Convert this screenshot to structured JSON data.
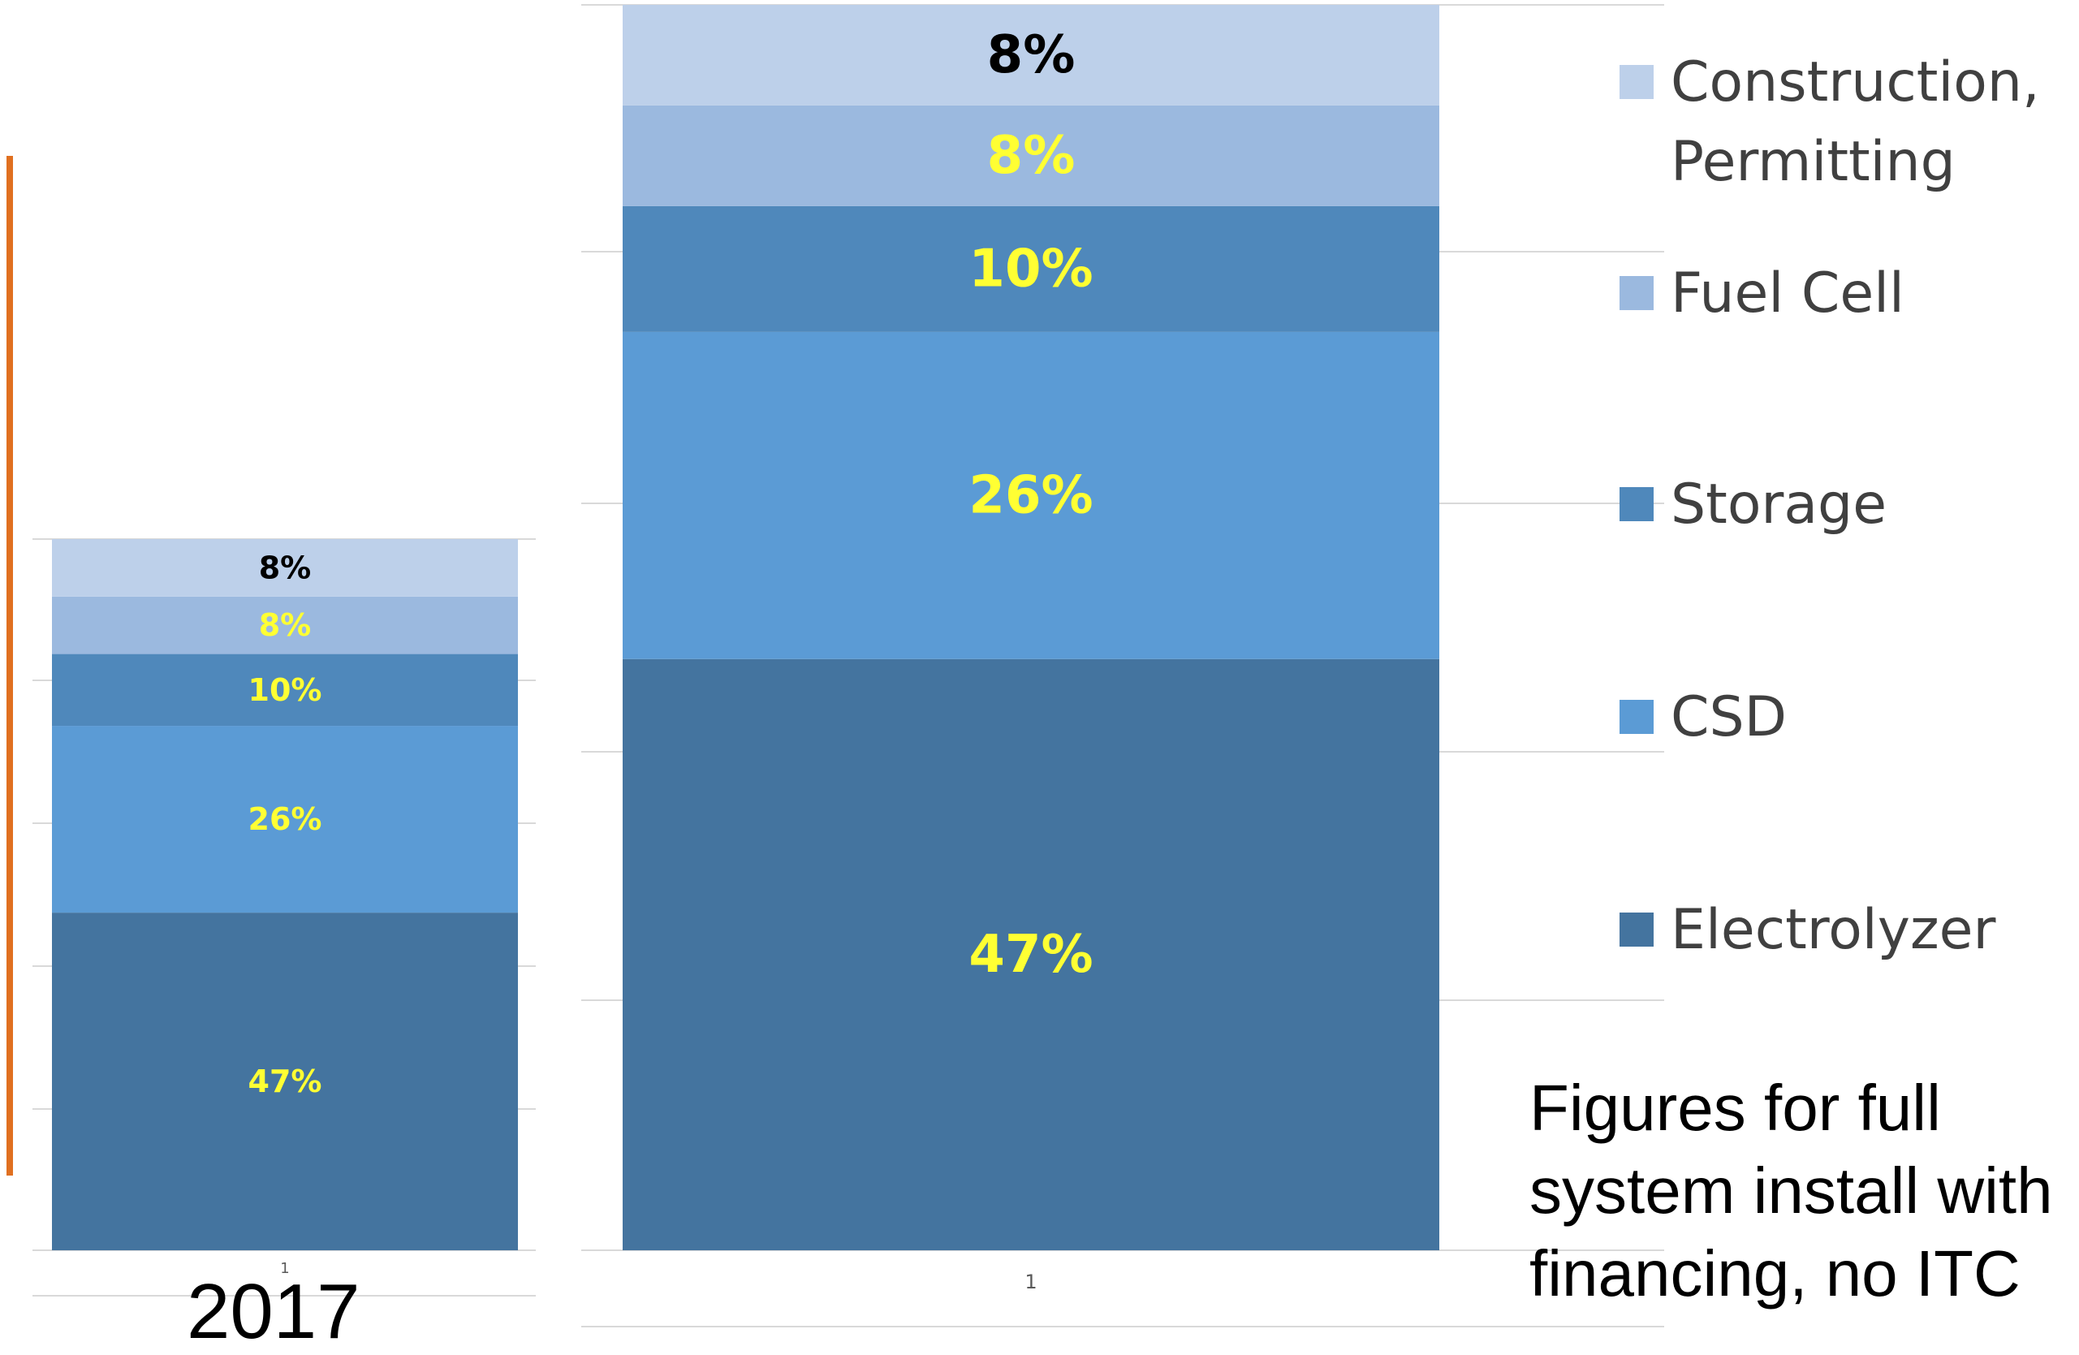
{
  "chart_data": [
    {
      "type": "bar",
      "stacked": true,
      "categories": [
        "1"
      ],
      "series": [
        {
          "name": "Electrolyzer",
          "values": [
            47
          ],
          "label": "47%"
        },
        {
          "name": "CSD",
          "values": [
            26
          ],
          "label": "26%"
        },
        {
          "name": "Storage",
          "values": [
            10
          ],
          "label": "10%"
        },
        {
          "name": "Fuel Cell",
          "values": [
            8
          ],
          "label": "8%"
        },
        {
          "name": "Construction, Permitting",
          "values": [
            8
          ],
          "label": "8%"
        }
      ],
      "caption": "2017",
      "grid": true
    },
    {
      "type": "bar",
      "stacked": true,
      "categories": [
        "1"
      ],
      "series": [
        {
          "name": "Electrolyzer",
          "values": [
            47
          ],
          "label": "47%"
        },
        {
          "name": "CSD",
          "values": [
            26
          ],
          "label": "26%"
        },
        {
          "name": "Storage",
          "values": [
            10
          ],
          "label": "10%"
        },
        {
          "name": "Fuel Cell",
          "values": [
            8
          ],
          "label": "8%"
        },
        {
          "name": "Construction, Permitting",
          "values": [
            8
          ],
          "label": "8%"
        }
      ],
      "grid": true,
      "legend": "right"
    }
  ],
  "colors": {
    "Electrolyzer": "#44749f",
    "CSD": "#5b9bd5",
    "Storage": "#4f88bb",
    "Fuel Cell": "#9bb9df",
    "Construction, Permitting": "#bdd0ea",
    "label_dark": "#000000",
    "label_light": "#ffff33",
    "divider": "#e07020"
  },
  "legend": {
    "items": [
      {
        "name": "Construction, Permitting",
        "line1": "Construction,",
        "line2": "Permitting",
        "key": "Construction, Permitting"
      },
      {
        "name": "Fuel Cell",
        "line1": "Fuel Cell",
        "key": "Fuel Cell"
      },
      {
        "name": "Storage",
        "line1": "Storage",
        "key": "Storage"
      },
      {
        "name": "CSD",
        "line1": "CSD",
        "key": "CSD"
      },
      {
        "name": "Electrolyzer",
        "line1": "Electrolyzer",
        "key": "Electrolyzer"
      }
    ]
  },
  "note": {
    "line1": "Figures for full",
    "line2": "system install with",
    "line3": "financing, no ITC"
  },
  "year_label": "2017"
}
